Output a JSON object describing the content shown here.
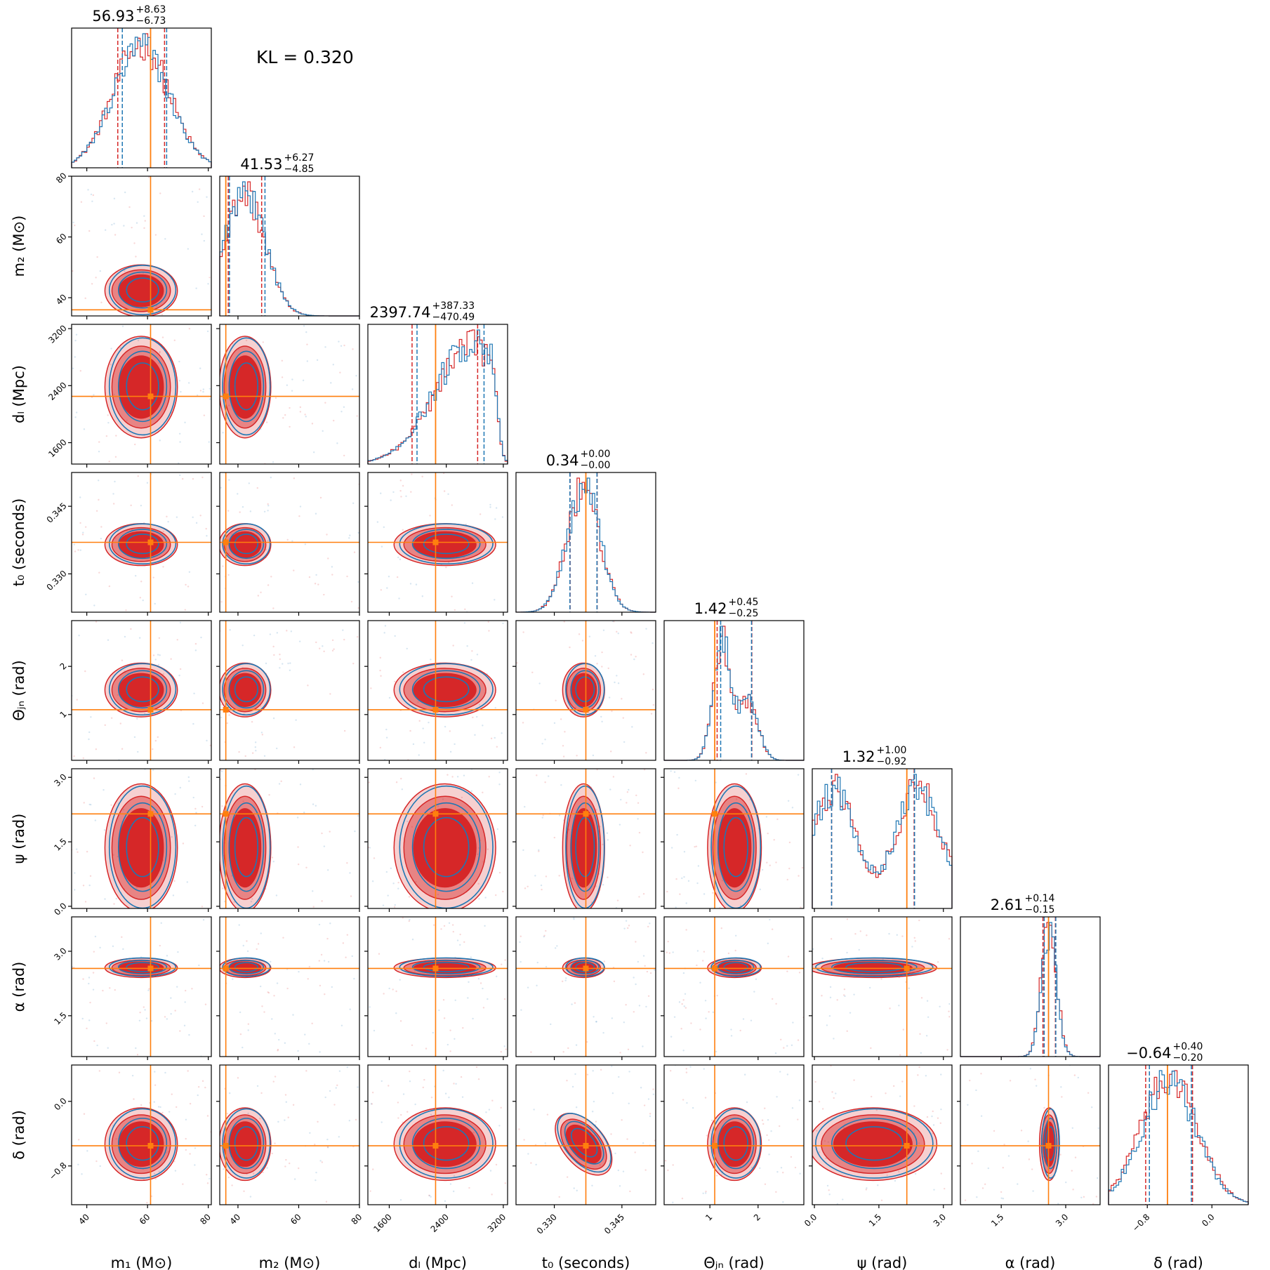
{
  "kl_text": "KL = 0.320",
  "colors": {
    "series_a": "#d62728",
    "series_b": "#1f77b4",
    "truth": "#ff7f0e"
  },
  "chart_data": {
    "type": "corner",
    "grid": false,
    "parameters": [
      {
        "key": "m1",
        "label": "m₁ (M⊙)",
        "range": [
          35,
          81
        ],
        "ticks": [
          40,
          60,
          80
        ],
        "truth": 61,
        "median": "56.93",
        "plus": "+8.63",
        "minus": "−6.73",
        "q_a": [
          50.2,
          65.6
        ],
        "q_b": [
          51.0,
          65.6
        ]
      },
      {
        "key": "m2",
        "label": "m₂ (M⊙)",
        "range": [
          34,
          80
        ],
        "ticks": [
          40,
          60,
          80
        ],
        "truth": 36,
        "median": "41.53",
        "plus": "+6.27",
        "minus": "−4.85",
        "q_a": [
          36.8,
          47.8
        ],
        "q_b": [
          36.5,
          48.2
        ]
      },
      {
        "key": "dL",
        "label": "dₗ (Mpc)",
        "range": [
          1300,
          3260
        ],
        "ticks": [
          1600,
          2400,
          3200
        ],
        "truth": 2250,
        "median": "2397.74",
        "plus": "+387.33",
        "minus": "−470.49",
        "q_a": [
          1920,
          2840
        ],
        "q_b": [
          1960,
          2900
        ]
      },
      {
        "key": "t0",
        "label": "t₀ (seconds)",
        "range": [
          0.3215,
          0.3525
        ],
        "ticks": [
          0.33,
          0.345
        ],
        "tick_labels": [
          "0.330",
          "0.345"
        ],
        "truth": 0.337,
        "median": "0.34",
        "plus": "+0.00",
        "minus": "−0.00",
        "q_a": [
          0.3335,
          0.3395
        ],
        "q_b": [
          0.333,
          0.339
        ]
      },
      {
        "key": "theta_jn",
        "label": "Θⱼₙ (rad)",
        "range": [
          0.05,
          2.95
        ],
        "ticks": [
          1,
          2
        ],
        "truth": 1.1,
        "median": "1.42",
        "plus": "+0.45",
        "minus": "−0.25",
        "q_a": [
          1.15,
          1.87
        ],
        "q_b": [
          1.18,
          1.82
        ]
      },
      {
        "key": "psi",
        "label": "ψ (rad)",
        "range": [
          -0.05,
          3.2
        ],
        "ticks": [
          0.0,
          1.5,
          3.0
        ],
        "tick_labels": [
          "0.0",
          "1.5",
          "3.0"
        ],
        "truth": 2.15,
        "median": "1.32",
        "plus": "+1.00",
        "minus": "−0.92",
        "q_a": [
          0.4,
          2.32
        ],
        "q_b": [
          0.35,
          2.28
        ]
      },
      {
        "key": "alpha",
        "label": "α (rad)",
        "range": [
          0.55,
          3.8
        ],
        "ticks": [
          1.5,
          3.0
        ],
        "tick_labels": [
          "1.5",
          "3.0"
        ],
        "truth": 2.6,
        "median": "2.61",
        "plus": "+0.14",
        "minus": "−0.15",
        "q_a": [
          2.47,
          2.76
        ],
        "q_b": [
          2.45,
          2.72
        ]
      },
      {
        "key": "delta",
        "label": "δ (rad)",
        "range": [
          -1.28,
          0.45
        ],
        "ticks": [
          -0.8,
          0.0
        ],
        "tick_labels": [
          "−0.8",
          "0.0"
        ],
        "truth": -0.55,
        "median": "−0.64",
        "plus": "+0.40",
        "minus": "−0.20",
        "q_a": [
          -0.82,
          -0.24
        ],
        "q_b": [
          -0.8,
          -0.28
        ]
      }
    ],
    "series": [
      {
        "name": "",
        "color": "#d62728"
      },
      {
        "name": "",
        "color": "#1f77b4"
      }
    ]
  }
}
